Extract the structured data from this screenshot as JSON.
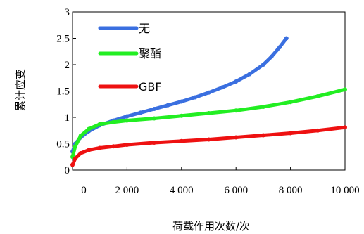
{
  "chart_data": {
    "type": "line",
    "xlabel": "荷载作用次数/次",
    "ylabel": "累计应变",
    "xlim": [
      0,
      10000
    ],
    "ylim": [
      0,
      3
    ],
    "xticks": [
      0,
      2000,
      4000,
      6000,
      8000,
      10000
    ],
    "xtick_labels": [
      "0",
      "2 000",
      "4 000",
      "6 000",
      "8 000",
      "10 000"
    ],
    "yticks": [
      0,
      0.5,
      1,
      1.5,
      2,
      2.5,
      3
    ],
    "ytick_labels": [
      "0",
      "0.5",
      "1",
      "1.5",
      "2",
      "2.5",
      "3"
    ],
    "grid": false,
    "legend_position": "top-left",
    "series": [
      {
        "name": "无",
        "color": "#3a6fe0",
        "x": [
          0,
          100,
          300,
          600,
          1000,
          1500,
          2000,
          2500,
          3000,
          3500,
          4000,
          4500,
          5000,
          5500,
          6000,
          6500,
          7000,
          7300,
          7600,
          7850
        ],
        "y": [
          0.35,
          0.5,
          0.62,
          0.74,
          0.85,
          0.94,
          1.02,
          1.09,
          1.16,
          1.23,
          1.3,
          1.38,
          1.47,
          1.57,
          1.68,
          1.82,
          2.0,
          2.15,
          2.33,
          2.5
        ]
      },
      {
        "name": "聚酯",
        "color": "#22ee22",
        "x": [
          0,
          100,
          300,
          600,
          1000,
          1500,
          2000,
          3000,
          4000,
          5000,
          6000,
          7000,
          8000,
          9000,
          10000
        ],
        "y": [
          0.25,
          0.45,
          0.65,
          0.78,
          0.87,
          0.91,
          0.94,
          0.98,
          1.03,
          1.08,
          1.13,
          1.2,
          1.29,
          1.4,
          1.53
        ]
      },
      {
        "name": "GBF",
        "color": "#ee1111",
        "x": [
          0,
          100,
          300,
          600,
          1000,
          1500,
          2000,
          3000,
          4000,
          5000,
          6000,
          7000,
          8000,
          9000,
          10000
        ],
        "y": [
          0.1,
          0.22,
          0.32,
          0.38,
          0.42,
          0.45,
          0.48,
          0.52,
          0.55,
          0.58,
          0.62,
          0.66,
          0.7,
          0.75,
          0.81
        ]
      }
    ]
  }
}
